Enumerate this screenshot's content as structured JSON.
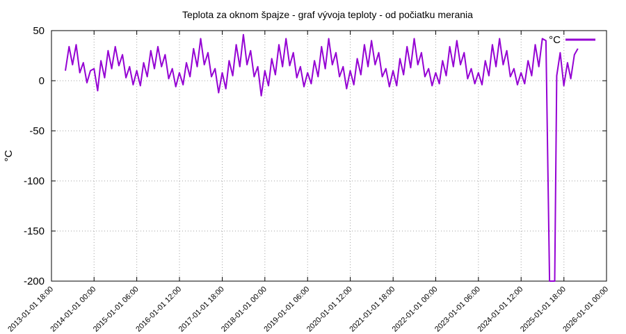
{
  "chart_data": {
    "type": "line",
    "title": "Teplota za oknom špajze - graf vývoja teploty - od počiatku merania",
    "y_label": "°C",
    "x": [
      "2013-05-01 00:00",
      "2013-06-01 00:00",
      "2013-07-01 00:00",
      "2013-08-01 00:00",
      "2013-09-01 00:00",
      "2013-10-01 00:00",
      "2013-11-01 00:00",
      "2013-12-01 00:00",
      "2014-01-01 00:00",
      "2014-02-01 00:00",
      "2014-03-01 00:00",
      "2014-04-01 00:00",
      "2014-05-01 00:00",
      "2014-06-01 00:00",
      "2014-07-01 00:00",
      "2014-08-01 00:00",
      "2014-09-01 00:00",
      "2014-10-01 00:00",
      "2014-11-01 00:00",
      "2014-12-01 00:00",
      "2015-01-01 00:00",
      "2015-02-01 00:00",
      "2015-03-01 00:00",
      "2015-04-01 00:00",
      "2015-05-01 00:00",
      "2015-06-01 00:00",
      "2015-07-01 00:00",
      "2015-08-01 00:00",
      "2015-09-01 00:00",
      "2015-10-01 00:00",
      "2015-11-01 00:00",
      "2015-12-01 00:00",
      "2016-01-01 00:00",
      "2016-02-01 00:00",
      "2016-03-01 00:00",
      "2016-04-01 00:00",
      "2016-05-01 00:00",
      "2016-06-01 00:00",
      "2016-07-01 00:00",
      "2016-08-01 00:00",
      "2016-09-01 00:00",
      "2016-10-01 00:00",
      "2016-11-01 00:00",
      "2016-12-01 00:00",
      "2017-01-01 00:00",
      "2017-02-01 00:00",
      "2017-03-01 00:00",
      "2017-04-01 00:00",
      "2017-05-01 00:00",
      "2017-06-01 00:00",
      "2017-07-01 00:00",
      "2017-08-01 00:00",
      "2017-09-01 00:00",
      "2017-10-01 00:00",
      "2017-11-01 00:00",
      "2017-12-01 00:00",
      "2018-01-01 00:00",
      "2018-02-01 00:00",
      "2018-03-01 00:00",
      "2018-04-01 00:00",
      "2018-05-01 00:00",
      "2018-06-01 00:00",
      "2018-07-01 00:00",
      "2018-08-01 00:00",
      "2018-09-01 00:00",
      "2018-10-01 00:00",
      "2018-11-01 00:00",
      "2018-12-01 00:00",
      "2019-01-01 00:00",
      "2019-02-01 00:00",
      "2019-03-01 00:00",
      "2019-04-01 00:00",
      "2019-05-01 00:00",
      "2019-06-01 00:00",
      "2019-07-01 00:00",
      "2019-08-01 00:00",
      "2019-09-01 00:00",
      "2019-10-01 00:00",
      "2019-11-01 00:00",
      "2019-12-01 00:00",
      "2020-01-01 00:00",
      "2020-02-01 00:00",
      "2020-03-01 00:00",
      "2020-04-01 00:00",
      "2020-05-01 00:00",
      "2020-06-01 00:00",
      "2020-07-01 00:00",
      "2020-08-01 00:00",
      "2020-09-01 00:00",
      "2020-10-01 00:00",
      "2020-11-01 00:00",
      "2020-12-01 00:00",
      "2021-01-01 00:00",
      "2021-02-01 00:00",
      "2021-03-01 00:00",
      "2021-04-01 00:00",
      "2021-05-01 00:00",
      "2021-06-01 00:00",
      "2021-07-01 00:00",
      "2021-08-01 00:00",
      "2021-09-01 00:00",
      "2021-10-01 00:00",
      "2021-11-01 00:00",
      "2021-12-01 00:00",
      "2022-01-01 00:00",
      "2022-02-01 00:00",
      "2022-03-01 00:00",
      "2022-04-01 00:00",
      "2022-05-01 00:00",
      "2022-06-01 00:00",
      "2022-07-01 00:00",
      "2022-08-01 00:00",
      "2022-09-01 00:00",
      "2022-10-01 00:00",
      "2022-11-01 00:00",
      "2022-12-01 00:00",
      "2023-01-01 00:00",
      "2023-02-01 00:00",
      "2023-03-01 00:00",
      "2023-04-01 00:00",
      "2023-05-01 00:00",
      "2023-06-01 00:00",
      "2023-07-01 00:00",
      "2023-08-01 00:00",
      "2023-09-01 00:00",
      "2023-10-01 00:00",
      "2023-11-01 00:00",
      "2023-12-01 00:00",
      "2024-01-01 00:00",
      "2024-02-01 00:00",
      "2024-03-01 00:00",
      "2024-04-01 00:00",
      "2024-05-01 00:00",
      "2024-06-01 00:00",
      "2024-07-01 00:00",
      "2024-08-01 00:00",
      "2024-09-01 00:00",
      "2024-10-15 00:00",
      "2024-11-01 00:00",
      "2024-12-01 00:00",
      "2025-01-01 00:00",
      "2025-02-01 00:00",
      "2025-03-01 00:00",
      "2025-04-01 00:00",
      "2025-05-01 00:00"
    ],
    "series": [
      {
        "name": "°C",
        "color": "#9400d3",
        "values": [
          10,
          34,
          16,
          36,
          8,
          18,
          -2,
          10,
          12,
          -10,
          20,
          3,
          30,
          12,
          34,
          15,
          26,
          3,
          14,
          -4,
          10,
          -5,
          18,
          4,
          30,
          12,
          34,
          14,
          26,
          2,
          12,
          -6,
          8,
          -4,
          18,
          4,
          32,
          14,
          42,
          16,
          28,
          4,
          12,
          -12,
          8,
          -8,
          20,
          5,
          36,
          14,
          46,
          16,
          30,
          4,
          14,
          -15,
          10,
          -5,
          22,
          6,
          36,
          14,
          42,
          15,
          28,
          3,
          14,
          -6,
          8,
          -3,
          20,
          4,
          34,
          12,
          42,
          16,
          28,
          4,
          14,
          -8,
          10,
          -4,
          22,
          6,
          36,
          14,
          40,
          16,
          28,
          4,
          12,
          -6,
          10,
          -5,
          22,
          6,
          34,
          13,
          42,
          16,
          28,
          4,
          12,
          -5,
          8,
          -3,
          20,
          5,
          34,
          14,
          40,
          16,
          28,
          2,
          12,
          -3,
          8,
          -4,
          20,
          5,
          36,
          14,
          42,
          16,
          30,
          4,
          12,
          -4,
          8,
          -3,
          20,
          5,
          36,
          14,
          42,
          40,
          -200,
          -200,
          5,
          28,
          -5,
          18,
          2,
          26,
          32
        ]
      }
    ],
    "xlim": [
      "2013-01-01 18:00",
      "2026-01-01 00:00"
    ],
    "xticks": [
      "2013-01-01 18:00",
      "2014-01-01 00:00",
      "2015-01-01 06:00",
      "2016-01-01 12:00",
      "2017-01-01 18:00",
      "2018-01-01 00:00",
      "2019-01-01 06:00",
      "2020-01-01 12:00",
      "2021-01-01 18:00",
      "2022-01-01 00:00",
      "2023-01-01 06:00",
      "2024-01-01 12:00",
      "2025-01-01 18:00",
      "2026-01-01 00:00"
    ],
    "ylim": [
      -200,
      50
    ],
    "yticks": [
      -200,
      -150,
      -100,
      -50,
      0,
      50
    ],
    "grid": true,
    "legend": "top-right"
  }
}
